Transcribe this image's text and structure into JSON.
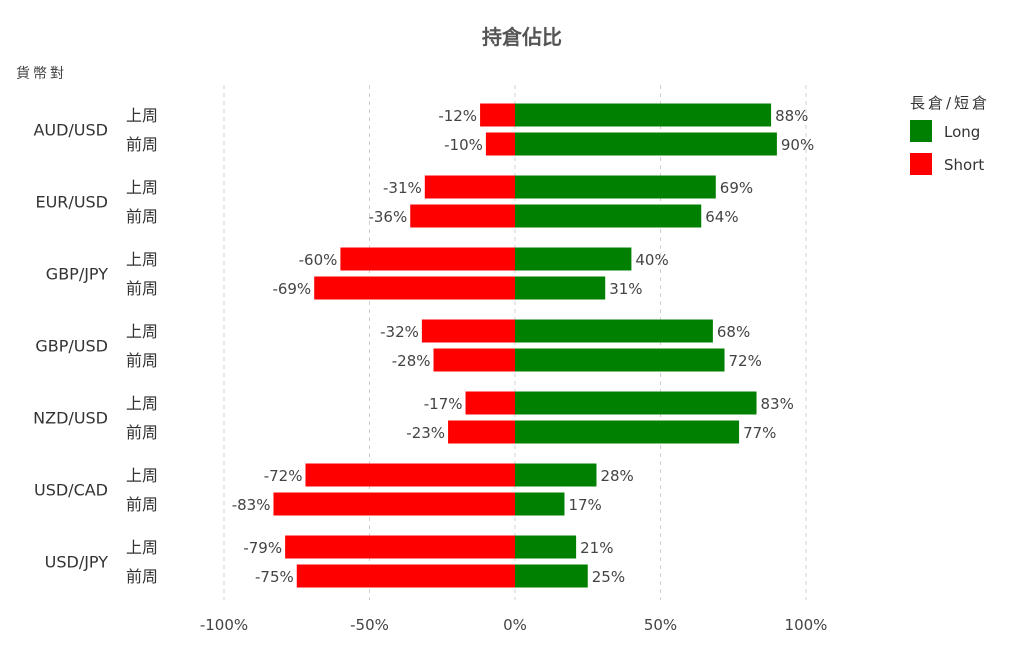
{
  "chart_data": {
    "type": "bar",
    "orientation": "horizontal",
    "stacked_diverging": true,
    "title": "持倉佔比",
    "ylabel": "貨幣對",
    "xlim": [
      -100,
      100
    ],
    "xticks": [
      -100,
      -50,
      0,
      50,
      100
    ],
    "xtick_labels": [
      "-100%",
      "-50%",
      "0%",
      "50%",
      "100%"
    ],
    "grid": "vertical dashed",
    "legend": {
      "title": "長倉/短倉",
      "position": "top-right"
    },
    "colors": {
      "Long": "#008000",
      "Short": "#ff0000"
    },
    "series": [
      {
        "name": "Long",
        "key": "long"
      },
      {
        "name": "Short",
        "key": "short"
      }
    ],
    "groups": [
      {
        "pair": "AUD/USD",
        "rows": [
          {
            "week": "上周",
            "long": 88,
            "short": -12
          },
          {
            "week": "前周",
            "long": 90,
            "short": -10
          }
        ]
      },
      {
        "pair": "EUR/USD",
        "rows": [
          {
            "week": "上周",
            "long": 69,
            "short": -31
          },
          {
            "week": "前周",
            "long": 64,
            "short": -36
          }
        ]
      },
      {
        "pair": "GBP/JPY",
        "rows": [
          {
            "week": "上周",
            "long": 40,
            "short": -60
          },
          {
            "week": "前周",
            "long": 31,
            "short": -69
          }
        ]
      },
      {
        "pair": "GBP/USD",
        "rows": [
          {
            "week": "上周",
            "long": 68,
            "short": -32
          },
          {
            "week": "前周",
            "long": 72,
            "short": -28
          }
        ]
      },
      {
        "pair": "NZD/USD",
        "rows": [
          {
            "week": "上周",
            "long": 83,
            "short": -17
          },
          {
            "week": "前周",
            "long": 77,
            "short": -23
          }
        ]
      },
      {
        "pair": "USD/CAD",
        "rows": [
          {
            "week": "上周",
            "long": 28,
            "short": -72
          },
          {
            "week": "前周",
            "long": 17,
            "short": -83
          }
        ]
      },
      {
        "pair": "USD/JPY",
        "rows": [
          {
            "week": "上周",
            "long": 21,
            "short": -79
          },
          {
            "week": "前周",
            "long": 25,
            "short": -75
          }
        ]
      }
    ]
  }
}
